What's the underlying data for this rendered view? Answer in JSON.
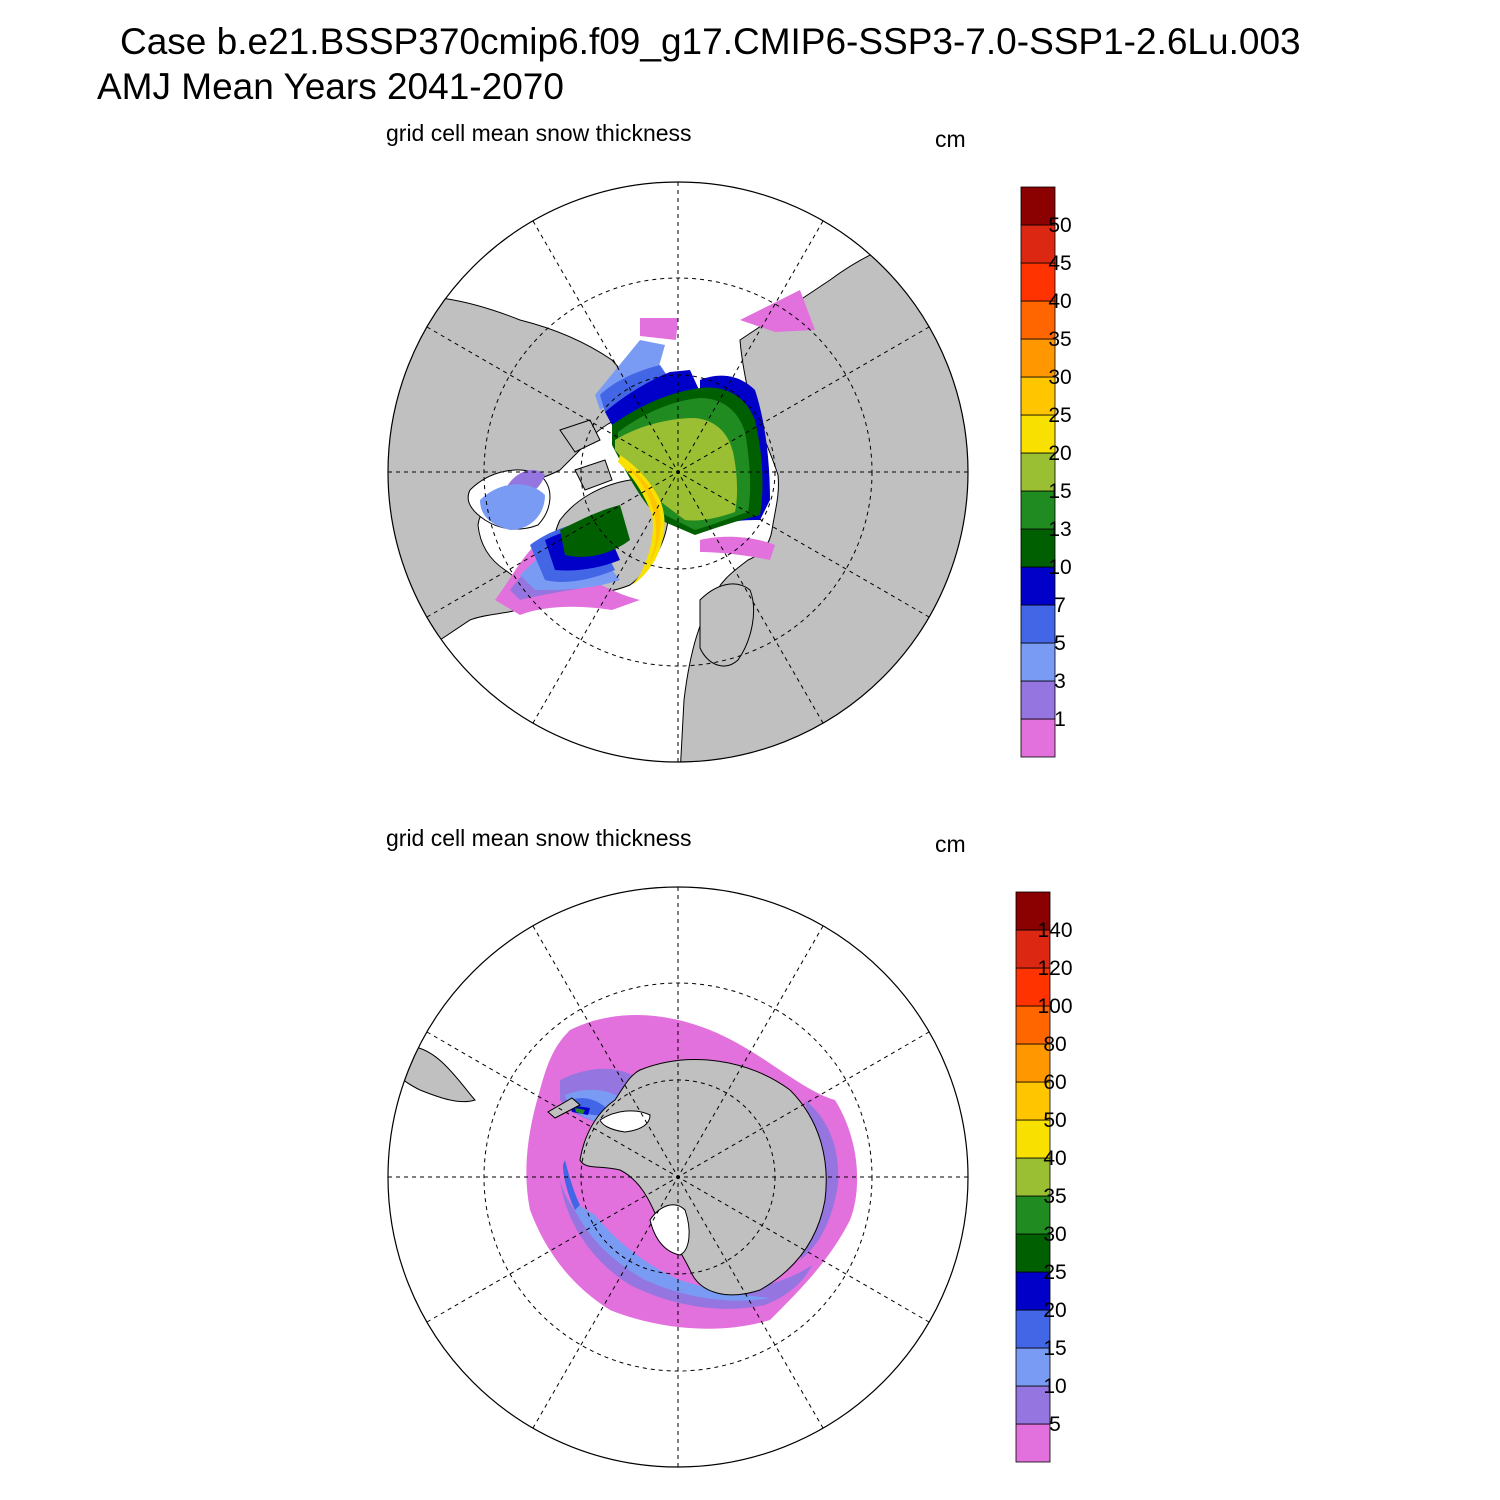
{
  "title": {
    "line1": "Case b.e21.BSSP370cmip6.f09_g17.CMIP6-SSP3-7.0-SSP1-2.6Lu.003",
    "line2": "AMJ Mean   Years 2041-2070"
  },
  "panels": [
    {
      "id": "north",
      "hemisphere": "Northern Hemisphere",
      "title": "grid cell mean snow thickness",
      "units": "cm",
      "colorbar": {
        "colors": [
          "#e371dd",
          "#9575df",
          "#7a9bf3",
          "#4366e6",
          "#0000c8",
          "#005f00",
          "#208b20",
          "#9bbf32",
          "#f8e000",
          "#ffc600",
          "#ff9800",
          "#ff6600",
          "#ff3300",
          "#dc2812",
          "#8b0000"
        ],
        "labels": [
          "1",
          "3",
          "5",
          "7",
          "10",
          "13",
          "15",
          "20",
          "25",
          "30",
          "35",
          "40",
          "45",
          "50"
        ]
      }
    },
    {
      "id": "south",
      "hemisphere": "Southern Hemisphere",
      "title": "grid cell mean snow thickness",
      "units": "cm",
      "colorbar": {
        "colors": [
          "#e371dd",
          "#9575df",
          "#7a9bf3",
          "#4366e6",
          "#0000c8",
          "#005f00",
          "#208b20",
          "#9bbf32",
          "#f8e000",
          "#ffc600",
          "#ff9800",
          "#ff6600",
          "#ff3300",
          "#dc2812",
          "#8b0000"
        ],
        "labels": [
          "5",
          "10",
          "15",
          "20",
          "25",
          "30",
          "35",
          "40",
          "50",
          "60",
          "80",
          "100",
          "120",
          "140"
        ]
      }
    }
  ],
  "land_color": "#c0c0c0",
  "ocean_color": "#ffffff"
}
